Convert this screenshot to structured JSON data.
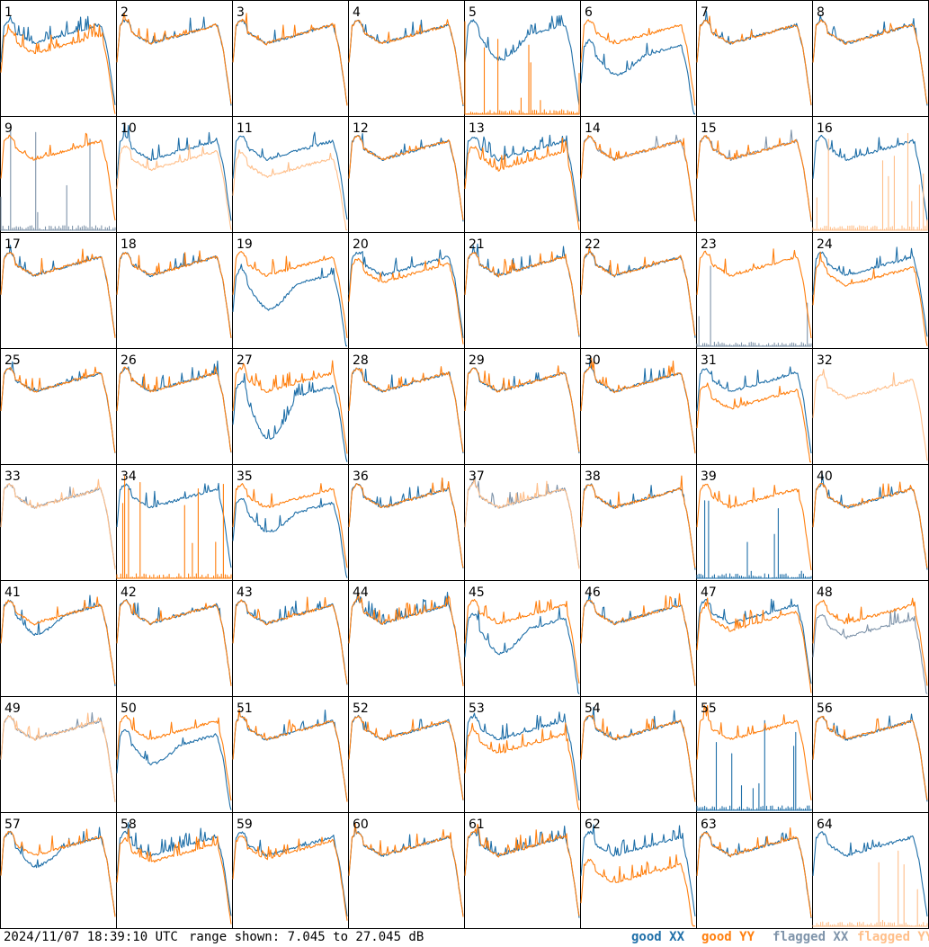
{
  "footer": {
    "timestamp": "2024/11/07 18:39:10 UTC",
    "range_text": "range shown: 7.045 to 27.045 dB"
  },
  "colors": {
    "good_xx": "#1f6fa8",
    "good_yy": "#ff7f0e",
    "flagged_xx": "#7f94aa",
    "flagged_yy": "#ffbf8a",
    "frame": "#000000"
  },
  "chart_data": {
    "type": "line",
    "layout": "8x8 small multiples",
    "y_range_db": [
      7.045,
      27.045
    ],
    "legend": [
      {
        "label": "good XX",
        "series": "xx",
        "flagged": false
      },
      {
        "label": "good YY",
        "series": "yy",
        "flagged": false
      },
      {
        "label": "flagged XX",
        "series": "xx",
        "flagged": true
      },
      {
        "label": "flagged YY",
        "series": "yy",
        "flagged": true
      }
    ],
    "panels": [
      {
        "id": "1",
        "xx": "normal",
        "yy": "normal",
        "yy_offset": -3,
        "spiky": true
      },
      {
        "id": "2",
        "xx": "normal",
        "yy": "normal"
      },
      {
        "id": "3",
        "xx": "normal",
        "yy": "normal"
      },
      {
        "id": "4",
        "xx": "normal",
        "yy": "normal"
      },
      {
        "id": "5",
        "xx": "normal",
        "yy": "dead_spikes",
        "xx_dip": 3,
        "spiky": true
      },
      {
        "id": "6",
        "xx": "normal",
        "yy": "normal",
        "xx_offset": -6,
        "xx_dip": 2
      },
      {
        "id": "7",
        "xx": "normal",
        "yy": "normal"
      },
      {
        "id": "8",
        "xx": "normal",
        "yy": "normal"
      },
      {
        "id": "9",
        "xx": "dead_spikes",
        "yy": "normal",
        "xx_flagged": true
      },
      {
        "id": "10",
        "xx": "normal",
        "yy": "normal",
        "yy_flagged": true,
        "yy_offset": -3
      },
      {
        "id": "11",
        "xx": "normal",
        "yy": "normal",
        "yy_flagged": true,
        "yy_offset": -5
      },
      {
        "id": "12",
        "xx": "normal",
        "yy": "normal"
      },
      {
        "id": "13",
        "xx": "normal",
        "yy": "normal",
        "yy_offset": -3,
        "spiky": true
      },
      {
        "id": "14",
        "xx": "normal",
        "yy": "normal",
        "xx_flagged": true
      },
      {
        "id": "15",
        "xx": "normal",
        "yy": "normal",
        "xx_flagged": true
      },
      {
        "id": "16",
        "xx": "normal",
        "yy": "dead_spikes",
        "yy_flagged": true
      },
      {
        "id": "17",
        "xx": "normal",
        "yy": "normal"
      },
      {
        "id": "18",
        "xx": "normal",
        "yy": "normal"
      },
      {
        "id": "19",
        "xx": "normal",
        "yy": "normal",
        "xx_offset": -5,
        "xx_dip": 3
      },
      {
        "id": "20",
        "xx": "normal",
        "yy": "normal",
        "yy_offset": -2
      },
      {
        "id": "21",
        "xx": "normal",
        "yy": "normal"
      },
      {
        "id": "22",
        "xx": "normal",
        "yy": "normal"
      },
      {
        "id": "23",
        "xx": "dead_spikes",
        "yy": "normal",
        "xx_flagged": true
      },
      {
        "id": "24",
        "xx": "normal",
        "yy": "normal",
        "yy_offset": -3
      },
      {
        "id": "25",
        "xx": "normal",
        "yy": "normal"
      },
      {
        "id": "26",
        "xx": "normal",
        "yy": "normal"
      },
      {
        "id": "27",
        "xx": "normal",
        "yy": "normal",
        "xx_offset": -4,
        "xx_dip": 6,
        "spiky": true
      },
      {
        "id": "28",
        "xx": "normal",
        "yy": "normal"
      },
      {
        "id": "29",
        "xx": "normal",
        "yy": "normal"
      },
      {
        "id": "30",
        "xx": "normal",
        "yy": "normal"
      },
      {
        "id": "31",
        "xx": "normal",
        "yy": "normal",
        "yy_offset": -5
      },
      {
        "id": "32",
        "xx": "none",
        "yy": "normal",
        "yy_flagged": true,
        "yy_offset": -2
      },
      {
        "id": "33",
        "xx": "normal",
        "yy": "normal",
        "xx_flagged": true,
        "yy_flagged": true
      },
      {
        "id": "34",
        "xx": "normal",
        "yy": "dead_spikes"
      },
      {
        "id": "35",
        "xx": "normal",
        "yy": "normal",
        "xx_offset": -4,
        "xx_dip": 2
      },
      {
        "id": "36",
        "xx": "normal",
        "yy": "normal"
      },
      {
        "id": "37",
        "xx": "normal",
        "yy": "normal",
        "xx_flagged": true,
        "yy_flagged": true
      },
      {
        "id": "38",
        "xx": "normal",
        "yy": "normal"
      },
      {
        "id": "39",
        "xx": "dead_spikes",
        "yy": "normal"
      },
      {
        "id": "40",
        "xx": "normal",
        "yy": "normal"
      },
      {
        "id": "41",
        "xx": "normal",
        "yy": "normal",
        "xx_dip": 2
      },
      {
        "id": "42",
        "xx": "normal",
        "yy": "normal"
      },
      {
        "id": "43",
        "xx": "normal",
        "yy": "normal"
      },
      {
        "id": "44",
        "xx": "normal",
        "yy": "normal",
        "spiky": true
      },
      {
        "id": "45",
        "xx": "normal",
        "yy": "normal",
        "xx_offset": -4,
        "xx_dip": 3
      },
      {
        "id": "46",
        "xx": "normal",
        "yy": "normal"
      },
      {
        "id": "47",
        "xx": "normal",
        "yy": "normal",
        "yy_offset": -2
      },
      {
        "id": "48",
        "xx": "normal",
        "yy": "normal",
        "xx_flagged": true,
        "xx_offset": -4
      },
      {
        "id": "49",
        "xx": "normal",
        "yy": "normal",
        "xx_flagged": true,
        "yy_flagged": true
      },
      {
        "id": "50",
        "xx": "normal",
        "yy": "normal",
        "xx_offset": -4,
        "xx_dip": 2
      },
      {
        "id": "51",
        "xx": "normal",
        "yy": "normal"
      },
      {
        "id": "52",
        "xx": "normal",
        "yy": "normal"
      },
      {
        "id": "53",
        "xx": "normal",
        "yy": "normal",
        "yy_offset": -4,
        "spiky": true
      },
      {
        "id": "54",
        "xx": "normal",
        "yy": "normal"
      },
      {
        "id": "55",
        "xx": "dead_spikes",
        "yy": "normal",
        "xx_flagged": false
      },
      {
        "id": "56",
        "xx": "normal",
        "yy": "normal"
      },
      {
        "id": "57",
        "xx": "normal",
        "yy": "normal",
        "xx_dip": 2
      },
      {
        "id": "58",
        "xx": "normal",
        "yy": "normal",
        "yy_offset": -2,
        "spiky": true
      },
      {
        "id": "59",
        "xx": "normal",
        "yy": "normal",
        "yy_offset": -1
      },
      {
        "id": "60",
        "xx": "normal",
        "yy": "normal"
      },
      {
        "id": "61",
        "xx": "normal",
        "yy": "normal",
        "spiky": true
      },
      {
        "id": "62",
        "xx": "normal",
        "yy": "normal",
        "yy_offset": -8,
        "spiky": true
      },
      {
        "id": "63",
        "xx": "normal",
        "yy": "normal"
      },
      {
        "id": "64",
        "xx": "normal",
        "yy": "dead_spikes",
        "yy_flagged": true
      }
    ]
  }
}
